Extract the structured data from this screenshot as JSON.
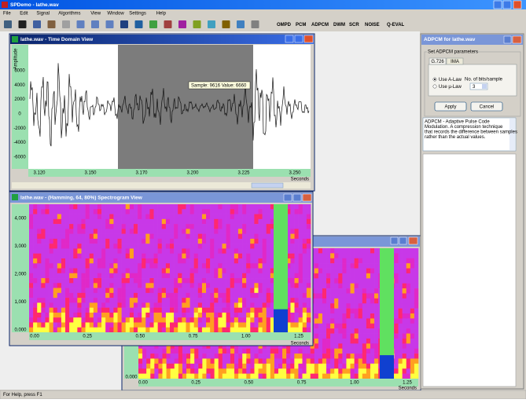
{
  "window": {
    "title": "SPDemo - lathe.wav"
  },
  "menu": [
    "File",
    "Edit",
    "Signal",
    "Algorithms",
    "View",
    "Window",
    "Settings",
    "Help"
  ],
  "toolbar": [
    "OMPD",
    "PCM",
    "ADPCM",
    "DWM",
    "SCR",
    "NOISE",
    "Q-EVAL"
  ],
  "time_view": {
    "title": "lathe.wav - Time Domain View",
    "y_label": "Amplitude",
    "tooltip": "Sample: 9616 Value: 6660",
    "yticks": [
      "6000",
      "4000",
      "2000",
      "0",
      "-2000",
      "-4000",
      "-6000"
    ],
    "xticks": [
      "3.120",
      "3.150",
      "3.170",
      "3.200",
      "3.225",
      "3.250"
    ],
    "x_unit": "Seconds"
  },
  "spectrogram_front": {
    "title": "lathe.wav - (Hamming, 64, 80%) Spectrogram View",
    "yticks": [
      "4,000",
      "3,000",
      "2,000",
      "1,000",
      "0.000"
    ],
    "xticks": [
      "0.00",
      "0.25",
      "0.50",
      "0.75",
      "1.00",
      "1.25"
    ],
    "x_unit": "Seconds"
  },
  "spectrogram_back": {
    "yticks": [
      "0.000"
    ],
    "xticks": [
      "0.00",
      "0.25",
      "0.50",
      "0.75",
      "1.00",
      "1.25"
    ],
    "x_unit": "Seconds"
  },
  "adpcm_panel": {
    "title": "ADPCM for lathe.wav",
    "group": "Set ADPCM parameters",
    "tabs": [
      "G.726",
      "IMA"
    ],
    "radios": [
      "Use A-Law",
      "Use µ-Law"
    ],
    "bits_label": "No. of bits/sample",
    "bits_value": "3",
    "buttons": [
      "Apply",
      "Cancel"
    ],
    "description_lines": [
      "ADPCM - Adaptive Pulse Code",
      "Modulation. A compression technique",
      "that records the difference between samples",
      "rather than the actual values."
    ]
  },
  "status": "For Help, press F1"
}
